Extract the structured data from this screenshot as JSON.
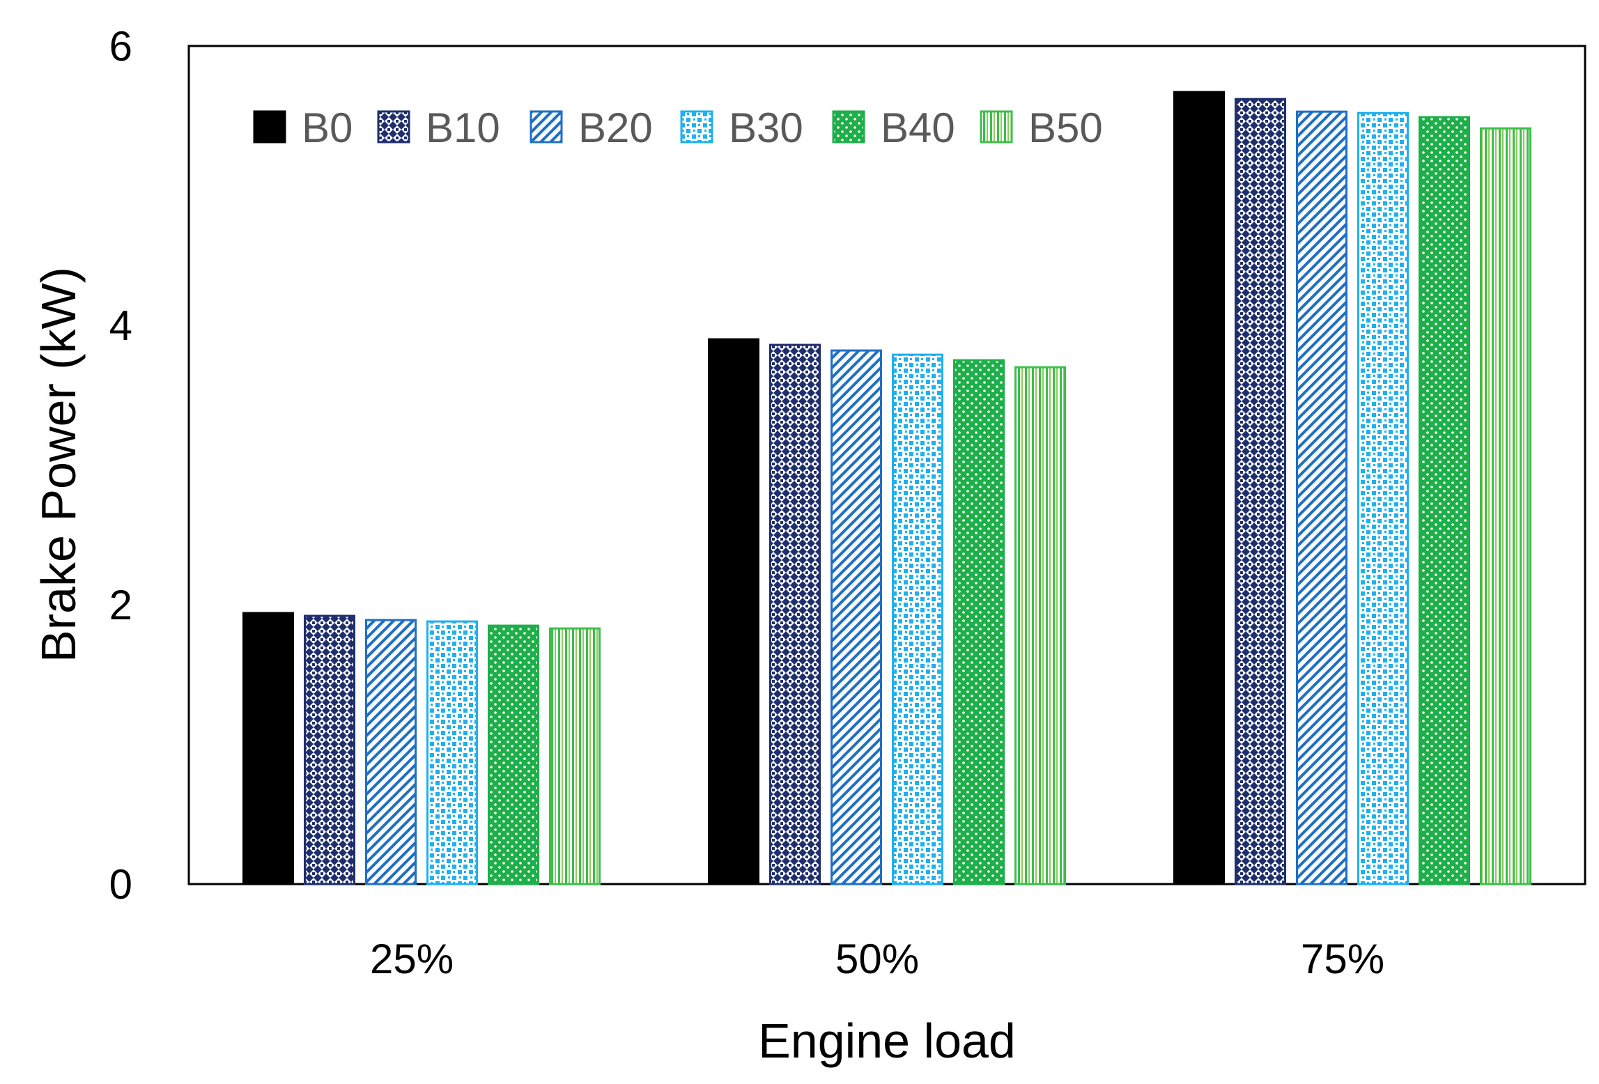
{
  "chart_data": {
    "type": "bar",
    "title": "",
    "xlabel": "Engine load",
    "ylabel": "Brake Power (kW)",
    "categories": [
      "25%",
      "50%",
      "75%"
    ],
    "ylim": [
      0,
      6
    ],
    "yticks": [
      "0",
      "2",
      "4",
      "6"
    ],
    "grid": false,
    "legend_position": "top-left",
    "series": [
      {
        "name": "B0",
        "values": [
          1.94,
          3.9,
          5.67
        ],
        "color": "#000000",
        "pattern": "solid"
      },
      {
        "name": "B10",
        "values": [
          1.92,
          3.86,
          5.62
        ],
        "color": "#1F2F6E",
        "pattern": "grid"
      },
      {
        "name": "B20",
        "values": [
          1.89,
          3.82,
          5.53
        ],
        "color": "#1F6FC5",
        "pattern": "diagonal"
      },
      {
        "name": "B30",
        "values": [
          1.88,
          3.79,
          5.52
        ],
        "color": "#1FB0F0",
        "pattern": "squares"
      },
      {
        "name": "B40",
        "values": [
          1.85,
          3.75,
          5.49
        ],
        "color": "#1FAF4A",
        "pattern": "dots"
      },
      {
        "name": "B50",
        "values": [
          1.83,
          3.7,
          5.41
        ],
        "color": "#3DBE4A",
        "pattern": "vertical"
      }
    ]
  }
}
